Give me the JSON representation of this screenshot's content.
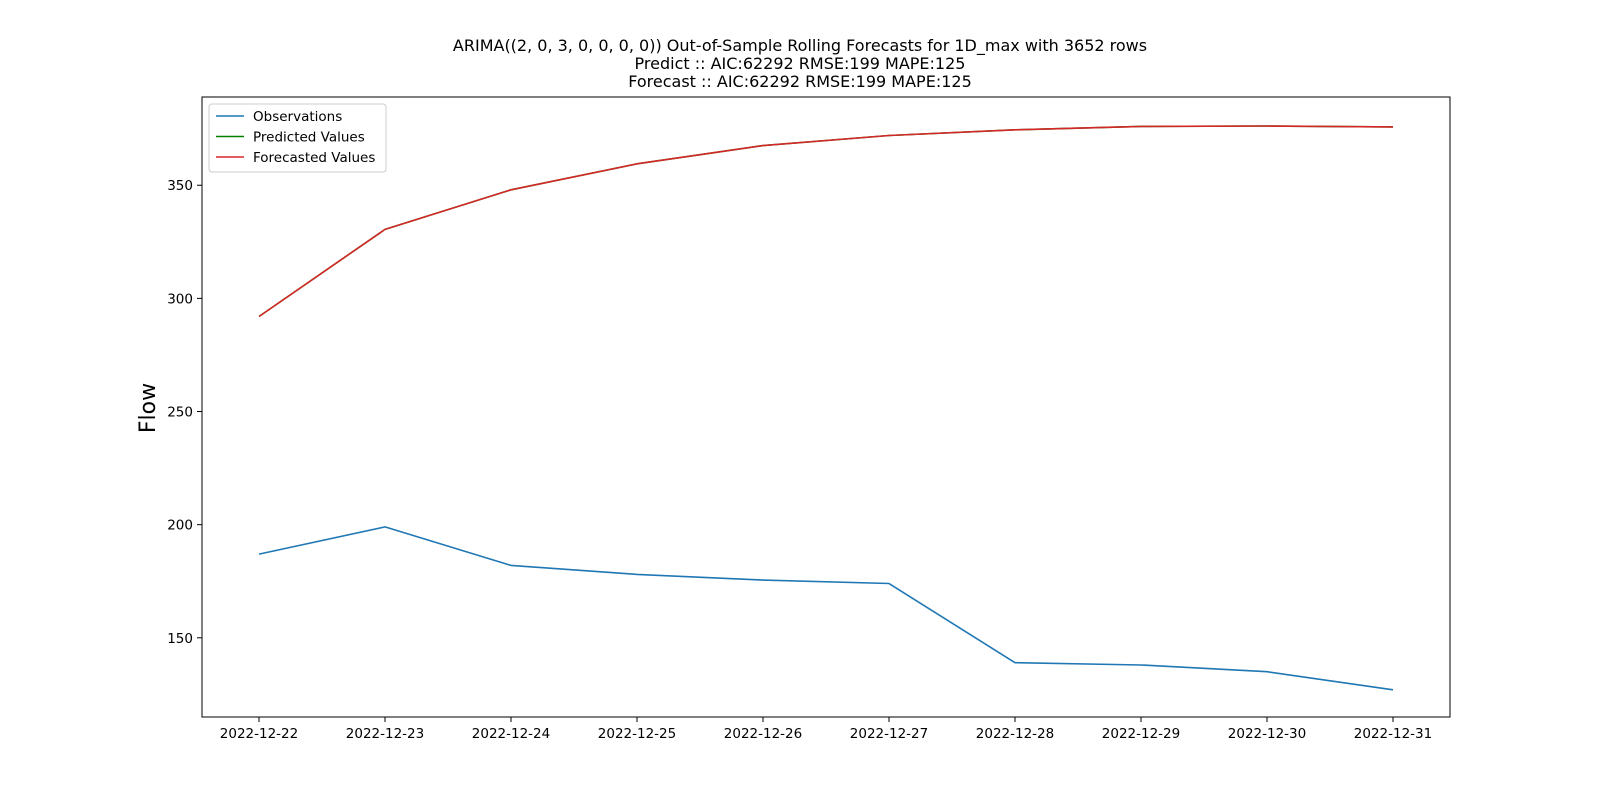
{
  "chart_data": {
    "type": "line",
    "title_lines": [
      "ARIMA((2, 0, 3, 0, 0, 0, 0)) Out-of-Sample Rolling Forecasts for 1D_max with 3652 rows",
      "Predict :: AIC:62292 RMSE:199 MAPE:125",
      "Forecast :: AIC:62292 RMSE:199 MAPE:125"
    ],
    "xlabel": "",
    "ylabel": "Flow",
    "x": [
      "2022-12-22",
      "2022-12-23",
      "2022-12-24",
      "2022-12-25",
      "2022-12-26",
      "2022-12-27",
      "2022-12-28",
      "2022-12-29",
      "2022-12-30",
      "2022-12-31"
    ],
    "yticks": [
      150,
      200,
      250,
      300,
      350
    ],
    "ylim": [
      115,
      389
    ],
    "grid": false,
    "legend_position": "top-left",
    "series": [
      {
        "name": "Observations",
        "color": "#1f77b4",
        "values": [
          187,
          199,
          182,
          178,
          175.5,
          174,
          139,
          138,
          135,
          127
        ]
      },
      {
        "name": "Predicted Values",
        "color": "#008000",
        "values": [
          292,
          330.5,
          348,
          359.5,
          367.5,
          372,
          374.5,
          376,
          376.2,
          375.8
        ]
      },
      {
        "name": "Forecasted Values",
        "color": "#d62728",
        "values": [
          292,
          330.5,
          348,
          359.5,
          367.5,
          372,
          374.5,
          376,
          376.2,
          375.8
        ]
      }
    ]
  }
}
